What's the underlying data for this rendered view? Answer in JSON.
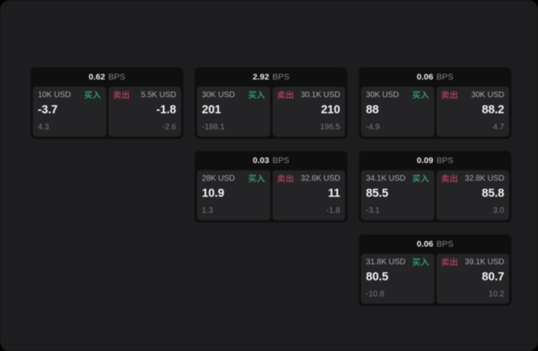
{
  "labels": {
    "buy": "买入",
    "sell": "卖出",
    "bps_unit": "BPS"
  },
  "colors": {
    "buy_green": "#35b078",
    "sell_red": "#c2435a",
    "window_bg": "#1d1d1f",
    "card_bg": "#0f0f10",
    "panel_bg": "#242427"
  },
  "cards": [
    {
      "col": 0,
      "row": 0,
      "bps": "0.62",
      "buy": {
        "amount": "10K USD",
        "value": "-3.7",
        "sub": "4.3"
      },
      "sell": {
        "amount": "5.5K USD",
        "value": "-1.8",
        "sub": "-2.6"
      }
    },
    {
      "col": 1,
      "row": 0,
      "bps": "2.92",
      "buy": {
        "amount": "30K USD",
        "value": "201",
        "sub": "-188.1"
      },
      "sell": {
        "amount": "30.1K USD",
        "value": "210",
        "sub": "196.5"
      }
    },
    {
      "col": 2,
      "row": 0,
      "bps": "0.06",
      "buy": {
        "amount": "30K USD",
        "value": "88",
        "sub": "-4.9"
      },
      "sell": {
        "amount": "30K USD",
        "value": "88.2",
        "sub": "4.7"
      }
    },
    {
      "col": 1,
      "row": 1,
      "bps": "0.03",
      "buy": {
        "amount": "28K USD",
        "value": "10.9",
        "sub": "1.3"
      },
      "sell": {
        "amount": "32.6K USD",
        "value": "11",
        "sub": "-1.8"
      }
    },
    {
      "col": 2,
      "row": 1,
      "bps": "0.09",
      "buy": {
        "amount": "34.1K USD",
        "value": "85.5",
        "sub": "-3.1"
      },
      "sell": {
        "amount": "32.8K USD",
        "value": "85.8",
        "sub": "3.0"
      }
    },
    {
      "col": 2,
      "row": 2,
      "bps": "0.06",
      "buy": {
        "amount": "31.8K USD",
        "value": "80.5",
        "sub": "-10.8"
      },
      "sell": {
        "amount": "39.1K USD",
        "value": "80.7",
        "sub": "10.2"
      }
    }
  ]
}
